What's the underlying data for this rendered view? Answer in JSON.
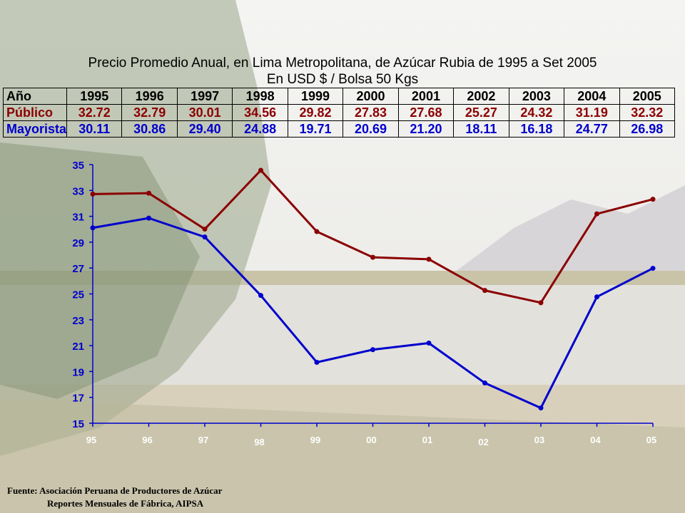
{
  "title_line1": "Precio Promedio Anual, en Lima Metropolitana, de Azúcar Rubia de  1995 a Set 2005",
  "title_line2": "En  USD $  / Bolsa 50 Kgs",
  "table": {
    "header_label": "Año",
    "years": [
      "1995",
      "1996",
      "1997",
      "1998",
      "1999",
      "2000",
      "2001",
      "2002",
      "2003",
      "2004",
      "2005"
    ],
    "rows": [
      {
        "label": "Público",
        "values": [
          "32.72",
          "32.79",
          "30.01",
          "34.56",
          "29.82",
          "27.83",
          "27.68",
          "25.27",
          "24.32",
          "31.19",
          "32.32"
        ]
      },
      {
        "label": "Mayorista",
        "values": [
          "30.11",
          "30.86",
          "29.40",
          "24.88",
          "19.71",
          "20.69",
          "21.20",
          "18.11",
          "16.18",
          "24.77",
          "26.98"
        ]
      }
    ]
  },
  "chart_data": {
    "type": "line",
    "categories": [
      "95",
      "96",
      "97",
      "98",
      "99",
      "00",
      "01",
      "02",
      "03",
      "04",
      "05"
    ],
    "series": [
      {
        "name": "Público",
        "color": "#8b0000",
        "values": [
          32.72,
          32.79,
          30.01,
          34.56,
          29.82,
          27.83,
          27.68,
          25.27,
          24.32,
          31.19,
          32.32
        ]
      },
      {
        "name": "Mayorista",
        "color": "#0000cc",
        "values": [
          30.11,
          30.86,
          29.4,
          24.88,
          19.71,
          20.69,
          21.2,
          18.11,
          16.18,
          24.77,
          26.98
        ]
      }
    ],
    "ylim": [
      15,
      35
    ],
    "yticks": [
      15,
      17,
      19,
      21,
      23,
      25,
      27,
      29,
      31,
      33,
      35
    ],
    "tick_color": "#0000cc",
    "grid": false
  },
  "source": {
    "line1": "Fuente: Asociación Peruana de Productores de Azúcar",
    "line2": "Reportes Mensuales de Fábrica, AIPSA"
  }
}
